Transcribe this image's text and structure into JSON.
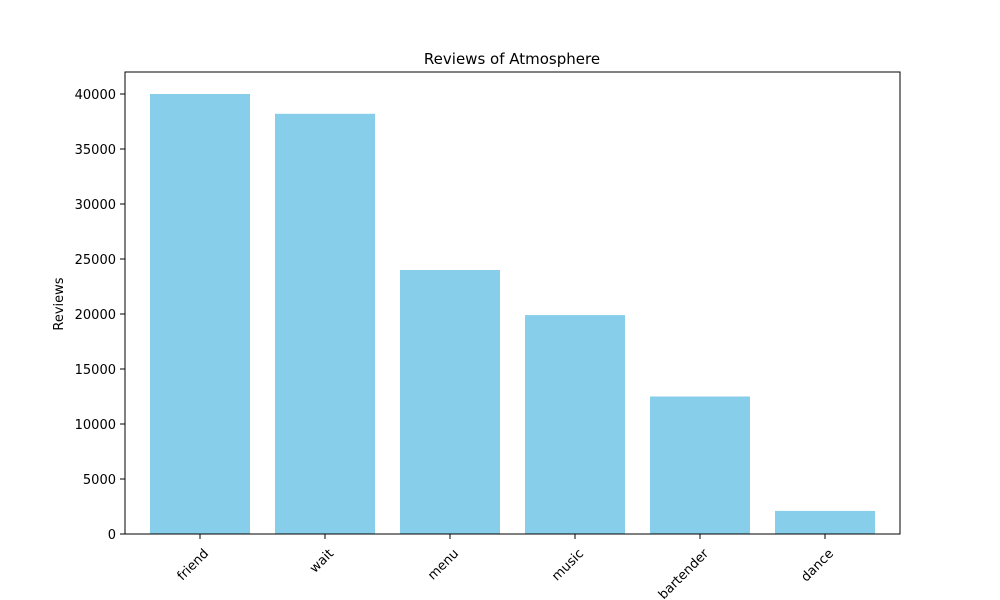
{
  "chart_data": {
    "type": "bar",
    "title": "Reviews of Atmosphere",
    "xlabel": "",
    "ylabel": "Reviews",
    "categories": [
      "friend",
      "wait",
      "menu",
      "music",
      "bartender",
      "dance"
    ],
    "values": [
      40000,
      38200,
      24000,
      19900,
      12500,
      2100
    ],
    "ylim": [
      0,
      42000
    ],
    "yticks": [
      0,
      5000,
      10000,
      15000,
      20000,
      25000,
      30000,
      35000,
      40000
    ],
    "bar_color": "#87ceeb",
    "grid": false,
    "legend": "none"
  }
}
